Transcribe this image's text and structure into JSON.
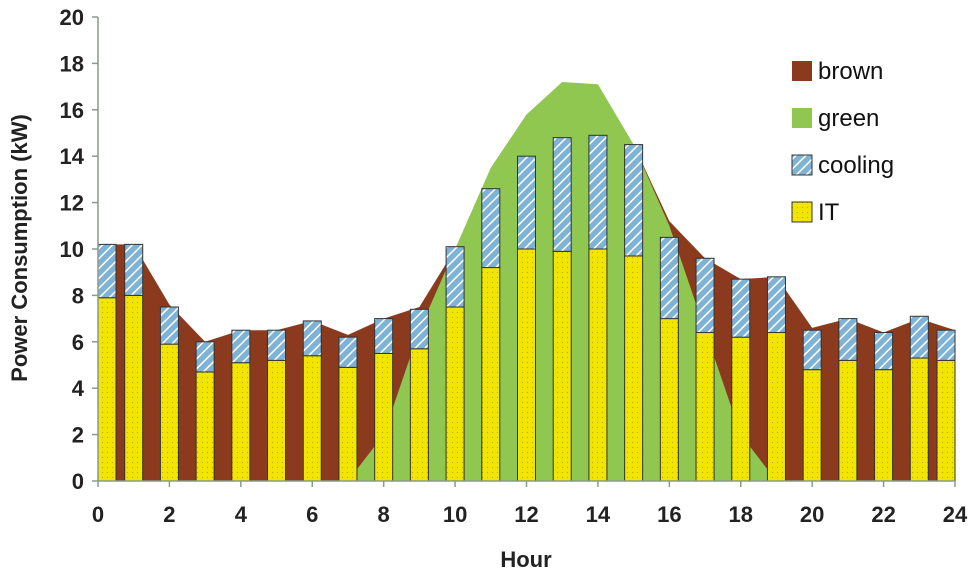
{
  "chart_data": {
    "type": "bar",
    "xlabel": "Hour",
    "ylabel": "Power Consumption (kW)",
    "xlim": [
      0,
      24
    ],
    "ylim": [
      0,
      20
    ],
    "xticks": [
      0,
      2,
      4,
      6,
      8,
      10,
      12,
      14,
      16,
      18,
      20,
      22,
      24
    ],
    "yticks": [
      0,
      2,
      4,
      6,
      8,
      10,
      12,
      14,
      16,
      18,
      20
    ],
    "grid": false,
    "legend_position": "top-right",
    "legend": [
      "brown",
      "green",
      "cooling",
      "IT"
    ],
    "hours": [
      0,
      1,
      2,
      3,
      4,
      5,
      6,
      7,
      8,
      9,
      10,
      11,
      12,
      13,
      14,
      15,
      16,
      17,
      18,
      19,
      20,
      21,
      22,
      23,
      24
    ],
    "series": [
      {
        "name": "IT",
        "style": "bar-stack-bottom",
        "color": "#f2e600",
        "values": [
          7.9,
          8.0,
          5.9,
          4.7,
          5.1,
          5.2,
          5.4,
          4.9,
          5.5,
          5.7,
          7.5,
          9.2,
          10.0,
          9.9,
          10.0,
          9.7,
          7.0,
          6.4,
          6.2,
          6.4,
          4.8,
          5.2,
          4.8,
          5.3,
          5.2
        ]
      },
      {
        "name": "cooling",
        "style": "bar-stack-top-hatched",
        "color": "#7fb3d5",
        "values": [
          2.3,
          2.2,
          1.6,
          1.3,
          1.4,
          1.3,
          1.5,
          1.3,
          1.5,
          1.7,
          2.6,
          3.4,
          4.0,
          4.9,
          4.9,
          4.8,
          3.5,
          3.2,
          2.5,
          2.4,
          1.7,
          1.8,
          1.6,
          1.8,
          1.3
        ]
      },
      {
        "name": "green",
        "style": "area",
        "color": "#8fc750",
        "values": [
          0,
          0,
          0,
          0,
          0,
          0,
          0,
          0,
          2.0,
          6.5,
          10.0,
          13.5,
          15.8,
          17.2,
          17.1,
          14.5,
          11.0,
          6.5,
          2.0,
          0,
          0,
          0,
          0,
          0,
          0
        ]
      },
      {
        "name": "brown",
        "style": "area-top",
        "color": "#8b3a1e",
        "values": [
          10.2,
          10.2,
          7.6,
          6.0,
          6.5,
          6.5,
          6.9,
          6.3,
          7.0,
          7.5,
          10.0,
          12.6,
          14.0,
          14.8,
          14.9,
          14.5,
          11.2,
          9.6,
          8.7,
          8.8,
          6.6,
          7.0,
          6.4,
          7.0,
          6.5
        ]
      }
    ]
  },
  "colors": {
    "brown": "#8b3a1e",
    "green": "#8fc750",
    "cooling_bg": "#7fb3d5",
    "cooling_hatch": "#ffffff",
    "it": "#f2e600",
    "bar_outline": "#333333",
    "axis": "#8a9a8a"
  }
}
